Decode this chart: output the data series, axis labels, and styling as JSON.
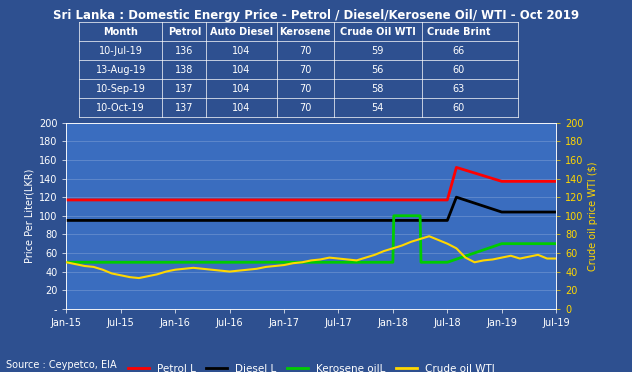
{
  "title": "Sri Lanka : Domestic Energy Price - Petrol / Diesel/Kerosene Oil/ WTI - Oct 2019",
  "bg_color": "#2E5090",
  "plot_bg_color": "#3A6DBF",
  "ylabel_left": "Price Per Liter(LKR)",
  "ylabel_right": "Crude oil price WTI ($)",
  "ylim_left": [
    0,
    200
  ],
  "ylim_right": [
    0,
    200
  ],
  "yticks_left": [
    0,
    20,
    40,
    60,
    80,
    100,
    120,
    140,
    160,
    180,
    200
  ],
  "yticks_right": [
    0,
    20,
    40,
    60,
    80,
    100,
    120,
    140,
    160,
    180,
    200
  ],
  "source_text": "Source : Ceypetco, EIA",
  "table_headers": [
    "Month",
    "Petrol",
    "Auto Diesel",
    "Kerosene",
    "Crude Oil WTI",
    "Crude Brint"
  ],
  "table_data": [
    [
      "10-Jul-19",
      "136",
      "104",
      "70",
      "59",
      "66"
    ],
    [
      "13-Aug-19",
      "138",
      "104",
      "70",
      "56",
      "60"
    ],
    [
      "10-Sep-19",
      "137",
      "104",
      "70",
      "58",
      "63"
    ],
    [
      "10-Oct-19",
      "137",
      "104",
      "70",
      "54",
      "60"
    ]
  ],
  "xtick_labels": [
    "Jan-15",
    "Jul-15",
    "Jan-16",
    "Jul-16",
    "Jan-17",
    "Jul-17",
    "Jan-18",
    "Jul-18",
    "Jan-19",
    "Jul-19"
  ],
  "series": {
    "petrol": {
      "color": "#FF0000",
      "label": "Petrol L",
      "data_x": [
        0,
        1,
        30,
        31,
        42,
        43,
        48,
        54
      ],
      "data_y": [
        117,
        117,
        117,
        117,
        117,
        152,
        137,
        137
      ]
    },
    "diesel": {
      "color": "#000000",
      "label": "Diesel L",
      "data_x": [
        0,
        1,
        30,
        31,
        42,
        43,
        48,
        54
      ],
      "data_y": [
        95,
        95,
        95,
        95,
        95,
        120,
        104,
        104
      ]
    },
    "kerosene": {
      "color": "#00CC00",
      "label": "Kerosene oilL",
      "data_x": [
        0,
        1,
        30,
        31,
        36,
        36.1,
        39,
        39.1,
        42,
        48,
        54
      ],
      "data_y": [
        50,
        50,
        50,
        50,
        50,
        100,
        100,
        50,
        50,
        70,
        70
      ]
    },
    "crude_wti": {
      "color": "#FFD700",
      "label": "Crude oil WTI",
      "data_x": [
        0,
        1,
        2,
        3,
        4,
        5,
        6,
        7,
        8,
        9,
        10,
        11,
        12,
        13,
        14,
        15,
        16,
        17,
        18,
        19,
        20,
        21,
        22,
        23,
        24,
        25,
        26,
        27,
        28,
        29,
        30,
        31,
        32,
        33,
        34,
        35,
        36,
        37,
        38,
        39,
        40,
        41,
        42,
        43,
        44,
        45,
        46,
        47,
        48,
        49,
        50,
        51,
        52,
        53,
        54
      ],
      "data_y": [
        50,
        48,
        46,
        45,
        42,
        38,
        36,
        34,
        33,
        35,
        37,
        40,
        42,
        43,
        44,
        43,
        42,
        41,
        40,
        41,
        42,
        43,
        45,
        46,
        47,
        49,
        50,
        52,
        53,
        55,
        54,
        53,
        52,
        55,
        58,
        62,
        65,
        68,
        72,
        75,
        78,
        74,
        70,
        65,
        55,
        50,
        52,
        53,
        55,
        57,
        54,
        56,
        58,
        54,
        54
      ]
    }
  },
  "legend_entries": [
    {
      "label": "Petrol L",
      "color": "#FF0000"
    },
    {
      "label": "Diesel L",
      "color": "#000000"
    },
    {
      "label": "Kerosene oilL",
      "color": "#00CC00"
    },
    {
      "label": "Crude oil WTI",
      "color": "#FFD700"
    }
  ],
  "col_widths": [
    0.19,
    0.1,
    0.16,
    0.13,
    0.2,
    0.17
  ]
}
